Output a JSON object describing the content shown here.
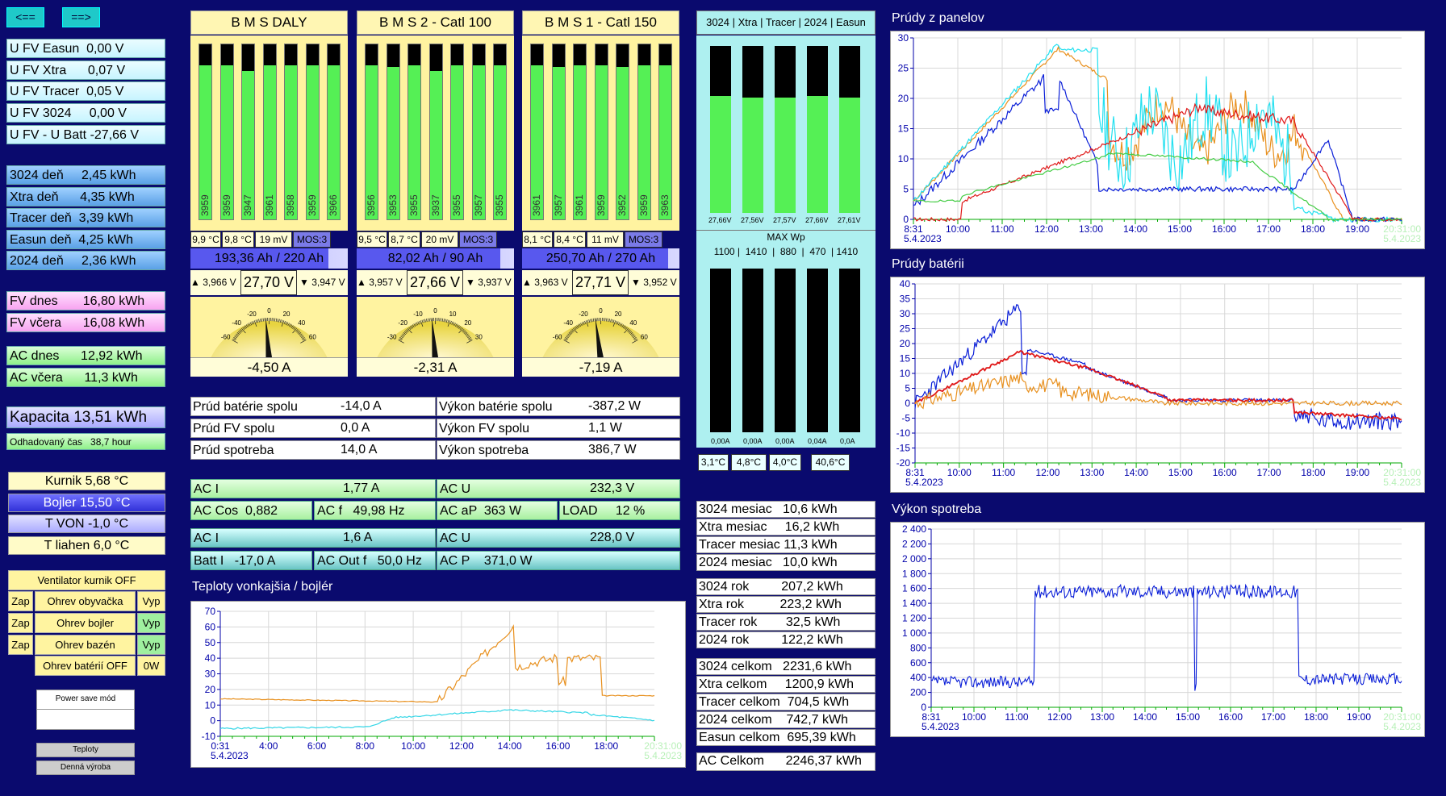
{
  "nav": {
    "prev": "<==",
    "next": "==>"
  },
  "left": {
    "fv": [
      {
        "label": "U FV Easun",
        "value": "0,00 V",
        "t": "U FV Easun  0,00 V"
      },
      {
        "label": "U FV Xtra",
        "value": "0,07 V",
        "t": "U FV Xtra      0,07 V"
      },
      {
        "label": "U FV Tracer",
        "value": "0,05 V",
        "t": "U FV Tracer  0,05 V"
      },
      {
        "label": "U FV 3024",
        "value": "0,00 V",
        "t": "U FV 3024     0,00 V"
      },
      {
        "label": "U FV - U Batt",
        "value": "-27,66 V",
        "t": "U FV - U Batt -27,66 V"
      }
    ],
    "day": [
      {
        "t": "3024 deň     2,45 kWh"
      },
      {
        "t": "Xtra deň      4,35 kWh"
      },
      {
        "t": "Tracer deň  3,39 kWh"
      },
      {
        "t": "Easun deň  4,25 kWh"
      },
      {
        "t": "2024 deň     2,36 kWh"
      }
    ],
    "fv_dnes": "FV dnes       16,80 kWh",
    "fv_vcera": "FV včera      16,08 kWh",
    "ac_dnes": "AC dnes      12,92 kWh",
    "ac_vcera": "AC včera      11,3 kWh",
    "kapacita": "Kapacita 13,51 kWh",
    "odhad": "Odhadovaný čas   38,7 hour",
    "temps": [
      {
        "t": "Kurnik 5,68 °C"
      },
      {
        "t": "Bojler 15,50 °C"
      },
      {
        "t": "T VON -1,0 °C"
      },
      {
        "t": "T liahen 6,0 °C"
      }
    ],
    "vent": "Ventilator kurnik  OFF",
    "rows": [
      {
        "zap": "Zap",
        "label": "Ohrev obyvačka",
        "vyp": "Vyp"
      },
      {
        "zap": "Zap",
        "label": "Ohrev bojler",
        "vyp": "Vyp"
      },
      {
        "zap": "Zap",
        "label": "Ohrev bazén",
        "vyp": "Vyp"
      }
    ],
    "ohrev_bat": "Ohrev batérií OFF",
    "ohrev_bat_w": "0W",
    "power_save": "Power save mód",
    "btn_teploty": "Teploty",
    "btn_denna": "Denná výroba"
  },
  "bms": [
    {
      "title": "B M S DALY",
      "cells": [
        "3959",
        "3959",
        "3947",
        "3961",
        "3958",
        "3959",
        "3966"
      ],
      "levels": [
        0.88,
        0.88,
        0.85,
        0.88,
        0.88,
        0.88,
        0.88
      ],
      "t1": "9,9 °C",
      "t2": "9,8 °C",
      "mv": "19 mV",
      "mos": "MOS:3",
      "ah": "193,36 Ah / 220 Ah",
      "soc": 0.879,
      "vmax": "▲ 3,966 V",
      "v": "27,70 V",
      "vmin": "▼ 3,947 V",
      "amp": "-4,50 A",
      "scale": [
        "-60",
        "-40",
        "-20",
        "0",
        "20",
        "40",
        "60"
      ],
      "needle": -4.5,
      "range": 60
    },
    {
      "title": "B M S 2 - Catl 100",
      "cells": [
        "3956",
        "3953",
        "3955",
        "3937",
        "3955",
        "3957",
        "3955"
      ],
      "levels": [
        0.88,
        0.87,
        0.88,
        0.85,
        0.88,
        0.88,
        0.88
      ],
      "t1": "9,5 °C",
      "t2": "8,7 °C",
      "mv": "20 mV",
      "mos": "MOS:3",
      "ah": "82,02 Ah / 90 Ah",
      "soc": 0.911,
      "vmax": "▲ 3,957 V",
      "v": "27,66 V",
      "vmin": "▼ 3,937 V",
      "amp": "-2,31 A",
      "scale": [
        "-30",
        "-20",
        "-10",
        "0",
        "10",
        "20",
        "30"
      ],
      "needle": -2.31,
      "range": 30
    },
    {
      "title": "B M S 1 - Catl 150",
      "cells": [
        "3961",
        "3957",
        "3961",
        "3959",
        "3952",
        "3959",
        "3963"
      ],
      "levels": [
        0.88,
        0.87,
        0.88,
        0.88,
        0.87,
        0.88,
        0.88
      ],
      "t1": "8,1 °C",
      "t2": "8,4 °C",
      "mv": "11 mV",
      "mos": "MOS:3",
      "ah": "250,70 Ah / 270 Ah",
      "soc": 0.928,
      "vmax": "▲ 3,963 V",
      "v": "27,71 V",
      "vmin": "▼ 3,952 V",
      "amp": "-7,19 A",
      "scale": [
        "-60",
        "-40",
        "-20",
        "0",
        "20",
        "40",
        "60"
      ],
      "needle": -7.19,
      "range": 60
    }
  ],
  "panel": {
    "header": "3024 | Xtra | Tracer | 2024 | Easun",
    "volts": [
      "27,66V",
      "27,56V",
      "27,57V",
      "27,66V",
      "27,61V"
    ],
    "vlevels": [
      0.7,
      0.69,
      0.69,
      0.7,
      0.69
    ],
    "maxwp": "MAX Wp",
    "wp": "1100 |  1410  |  880  |  470  | 1410",
    "amps": [
      "0,00A",
      "0,00A",
      "0,00A",
      "0,04A",
      "0,0A"
    ],
    "temps": [
      "3,1°C",
      "4,8°C",
      "4,0°C",
      "40,6°C"
    ]
  },
  "totals": [
    {
      "l": "Prúd batérie spolu",
      "v": "-14,0 A",
      "l2": "Výkon batérie spolu",
      "v2": "-387,2 W"
    },
    {
      "l": "Prúd FV spolu",
      "v": "0,0 A",
      "l2": "Výkon FV spolu",
      "v2": "1,1 W"
    },
    {
      "l": "Prúd spotreba",
      "v": "14,0 A",
      "l2": "Výkon spotreba",
      "v2": "386,7 W"
    }
  ],
  "ac1": {
    "i_l": "AC I",
    "i_v": "1,77 A",
    "u_l": "AC U",
    "u_v": "232,3 V",
    "cos_l": "AC Cos",
    "cos_v": "0,882",
    "f_l": "AC f",
    "f_v": "49,98 Hz",
    "ap_l": "AC aP",
    "ap_v": "363 W",
    "load_l": "LOAD",
    "load_v": "12 %"
  },
  "ac2": {
    "i_l": "AC I",
    "i_v": "1,6 A",
    "u_l": "AC U",
    "u_v": "228,0 V",
    "b_l": "Batt I",
    "b_v": "-17,0 A",
    "f_l": "AC Out f",
    "f_v": "50,0 Hz",
    "p_l": "AC P",
    "p_v": "371,0 W"
  },
  "energy": {
    "mesiac": [
      "3024 mesiac   10,6 kWh",
      "Xtra mesiac     16,2 kWh",
      "Tracer mesiac 11,3 kWh",
      "2024 mesiac   10,0 kWh"
    ],
    "rok": [
      "3024 rok         207,2 kWh",
      "Xtra rok          223,2 kWh",
      "Tracer rok        32,5 kWh",
      "2024 rok         122,2 kWh"
    ],
    "celkom": [
      "3024 celkom   2231,6 kWh",
      "Xtra celkom     1200,9 kWh",
      "Tracer celkom  704,5 kWh",
      "2024 celkom    742,7 kWh",
      "Easun celkom  695,39 kWh"
    ],
    "ac_celkom": "AC Celkom      2246,37 kWh"
  },
  "charts": {
    "temp": {
      "title": "Teploty vonkajšia / bojlér",
      "yticks": [
        "70",
        "60",
        "50",
        "40",
        "30",
        "20",
        "10",
        "0",
        "-10"
      ],
      "xticks": [
        "0:31",
        "4:00",
        "6:00",
        "8:00",
        "10:00",
        "12:00",
        "14:00",
        "16:00",
        "18:00"
      ],
      "date": "5.4.2023",
      "end": "20:31:00",
      "enddate": "5.4.2023",
      "colors": {
        "bojler": "#e8901e",
        "von": "#33d6e6"
      }
    },
    "panels": {
      "title": "Prúdy z panelov",
      "yticks": [
        "30",
        "25",
        "20",
        "15",
        "10",
        "5",
        "0"
      ],
      "xticks": [
        "8:31",
        "10:00",
        "11:00",
        "12:00",
        "13:00",
        "14:00",
        "15:00",
        "16:00",
        "17:00",
        "18:00",
        "19:00"
      ],
      "date": "5.4.2023",
      "end": "20:31:00",
      "enddate": "5.4.2023",
      "colors": {
        "orange": "#e8901e",
        "cyan": "#22e0f0",
        "blue": "#0a1ed8",
        "red": "#e01818",
        "green": "#44cc44"
      }
    },
    "batt": {
      "title": "Prúdy batérii",
      "yticks": [
        "40",
        "35",
        "30",
        "25",
        "20",
        "15",
        "10",
        "5",
        "0",
        "-5",
        "-10",
        "-15",
        "-20"
      ],
      "xticks": [
        "8:31",
        "10:00",
        "11:00",
        "12:00",
        "13:00",
        "14:00",
        "15:00",
        "16:00",
        "17:00",
        "18:00",
        "19:00"
      ],
      "date": "5.4.2023",
      "end": "20:31:00",
      "enddate": "5.4.2023"
    },
    "load": {
      "title": "Výkon spotreba",
      "yticks": [
        "2 400",
        "2 200",
        "2 000",
        "1 800",
        "1 600",
        "1 400",
        "1 200",
        "1 000",
        "800",
        "600",
        "400",
        "200",
        "0"
      ],
      "xticks": [
        "8:31",
        "10:00",
        "11:00",
        "12:00",
        "13:00",
        "14:00",
        "15:00",
        "16:00",
        "17:00",
        "18:00",
        "19:00"
      ],
      "date": "5.4.2023",
      "end": "20:31:00",
      "enddate": "5.4.2023"
    }
  }
}
